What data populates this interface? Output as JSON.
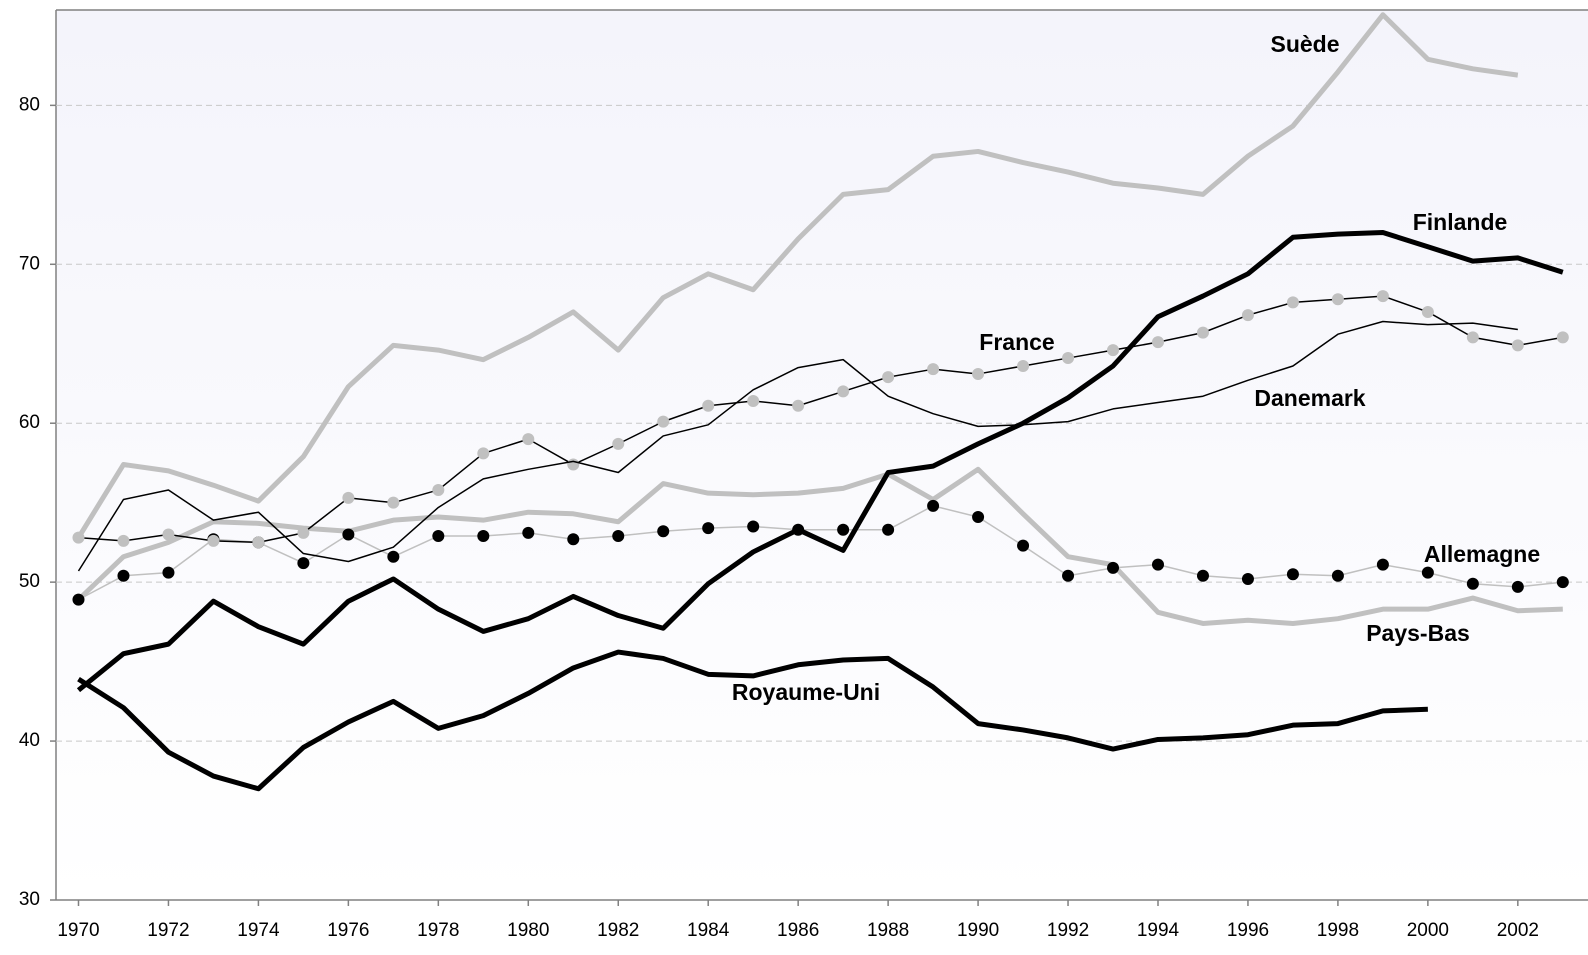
{
  "chart_data": {
    "type": "line",
    "x": [
      1970,
      1971,
      1972,
      1973,
      1974,
      1975,
      1976,
      1977,
      1978,
      1979,
      1980,
      1981,
      1982,
      1983,
      1984,
      1985,
      1986,
      1987,
      1988,
      1989,
      1990,
      1991,
      1992,
      1993,
      1994,
      1995,
      1996,
      1997,
      1998,
      1999,
      2000,
      2001,
      2002,
      2003
    ],
    "xlim": [
      1969.5,
      2003.56
    ],
    "xticks": [
      1970,
      1972,
      1974,
      1976,
      1978,
      1980,
      1982,
      1984,
      1986,
      1988,
      1990,
      1992,
      1994,
      1996,
      1998,
      2000,
      2002
    ],
    "ylim": [
      30,
      86
    ],
    "yticks": [
      30,
      40,
      50,
      60,
      70,
      80
    ],
    "grid": true,
    "series": [
      {
        "name": "Suède",
        "color": "#c0c0c0",
        "line_width": 5,
        "values": [
          52.8,
          57.4,
          57.0,
          56.1,
          55.1,
          57.9,
          62.3,
          64.9,
          64.6,
          64.0,
          65.4,
          67.0,
          64.6,
          67.9,
          69.4,
          68.4,
          71.6,
          74.4,
          74.7,
          76.8,
          77.1,
          76.4,
          75.8,
          75.1,
          74.8,
          74.4,
          76.8,
          78.7,
          82.1,
          85.7,
          82.9,
          82.3,
          81.9,
          null
        ]
      },
      {
        "name": "Finlande",
        "color": "#000000",
        "line_width": 5,
        "values": [
          43.2,
          45.5,
          46.1,
          48.8,
          47.2,
          46.1,
          48.8,
          50.2,
          48.3,
          46.9,
          47.7,
          49.1,
          47.9,
          47.1,
          49.9,
          51.9,
          53.3,
          52.0,
          56.9,
          57.3,
          58.7,
          60.0,
          61.6,
          63.6,
          66.7,
          68.0,
          69.4,
          71.7,
          71.9,
          72.0,
          71.1,
          70.2,
          70.4,
          69.5
        ]
      },
      {
        "name": "France",
        "color": "#000000",
        "line_width": 1.5,
        "marker": "circle",
        "marker_color": "#c0c0c0",
        "values": [
          52.8,
          52.6,
          53.0,
          52.6,
          52.5,
          53.1,
          55.3,
          55.0,
          55.8,
          58.1,
          59.0,
          57.4,
          58.7,
          60.1,
          61.1,
          61.4,
          61.1,
          62.0,
          62.9,
          63.4,
          63.1,
          63.6,
          64.1,
          64.6,
          65.1,
          65.7,
          66.8,
          67.6,
          67.8,
          68.0,
          67.0,
          65.4,
          64.9,
          65.4
        ]
      },
      {
        "name": "Danemark",
        "color": "#000000",
        "line_width": 1.5,
        "values": [
          50.7,
          55.2,
          55.8,
          53.9,
          54.4,
          51.8,
          51.3,
          52.2,
          54.7,
          56.5,
          57.1,
          57.6,
          56.9,
          59.2,
          59.9,
          62.1,
          63.5,
          64.0,
          61.7,
          60.6,
          59.8,
          59.9,
          60.1,
          60.9,
          61.3,
          61.7,
          62.7,
          63.6,
          65.6,
          66.4,
          66.2,
          66.3,
          65.9,
          null
        ]
      },
      {
        "name": "Allemagne",
        "color": "#c0c0c0",
        "line_width": 1.5,
        "marker": "circle",
        "marker_color": "#000000",
        "values": [
          48.9,
          50.4,
          50.6,
          52.7,
          52.5,
          51.2,
          53.0,
          51.6,
          52.9,
          52.9,
          53.1,
          52.7,
          52.9,
          53.2,
          53.4,
          53.5,
          53.3,
          53.3,
          53.3,
          54.8,
          54.1,
          52.3,
          50.4,
          50.9,
          51.1,
          50.4,
          50.2,
          50.5,
          50.4,
          51.1,
          50.6,
          49.9,
          49.7,
          50.0
        ]
      },
      {
        "name": "Pays-Bas",
        "color": "#c0c0c0",
        "line_width": 5,
        "values": [
          48.9,
          51.6,
          52.5,
          53.8,
          53.7,
          53.4,
          53.2,
          53.9,
          54.1,
          53.9,
          54.4,
          54.3,
          53.8,
          56.2,
          55.6,
          55.5,
          55.6,
          55.9,
          56.8,
          55.2,
          57.1,
          54.3,
          51.6,
          51.1,
          48.1,
          47.4,
          47.6,
          47.4,
          47.7,
          48.3,
          48.3,
          49.0,
          48.2,
          48.3
        ]
      },
      {
        "name": "Royaume-Uni",
        "color": "#000000",
        "line_width": 5,
        "values": [
          43.9,
          42.1,
          39.3,
          37.8,
          37.0,
          39.6,
          41.2,
          42.5,
          40.8,
          41.6,
          43.0,
          44.6,
          45.6,
          45.2,
          44.2,
          44.1,
          44.8,
          45.1,
          45.2,
          43.4,
          41.1,
          40.7,
          40.2,
          39.5,
          40.1,
          40.2,
          40.4,
          41.0,
          41.1,
          41.9,
          42.0,
          null,
          null,
          null
        ]
      }
    ]
  }
}
